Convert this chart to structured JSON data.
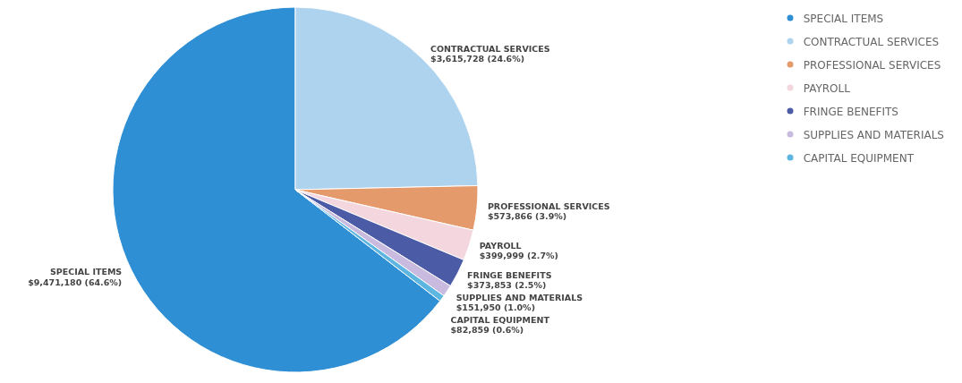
{
  "chart_data": {
    "type": "pie",
    "categories": [
      "SPECIAL ITEMS",
      "CONTRACTUAL SERVICES",
      "PROFESSIONAL SERVICES",
      "PAYROLL",
      "FRINGE BENEFITS",
      "SUPPLIES AND MATERIALS",
      "CAPITAL EQUIPMENT"
    ],
    "values": [
      9471180,
      3615728,
      573866,
      399999,
      373853,
      151950,
      82859
    ],
    "colors": [
      "#2f8fd4",
      "#aed3ee",
      "#e59a6c",
      "#f4d6df",
      "#4b5ba6",
      "#c9badf",
      "#5db6df"
    ],
    "value_labels": [
      "$9,471,180 (64.6%)",
      "$3,615,728 (24.6%)",
      "$573,866 (3.9%)",
      "$399,999 (2.7%)",
      "$373,853 (2.5%)",
      "$151,950 (1.0%)",
      "$82,859 (0.6%)"
    ],
    "legend": "top right"
  }
}
